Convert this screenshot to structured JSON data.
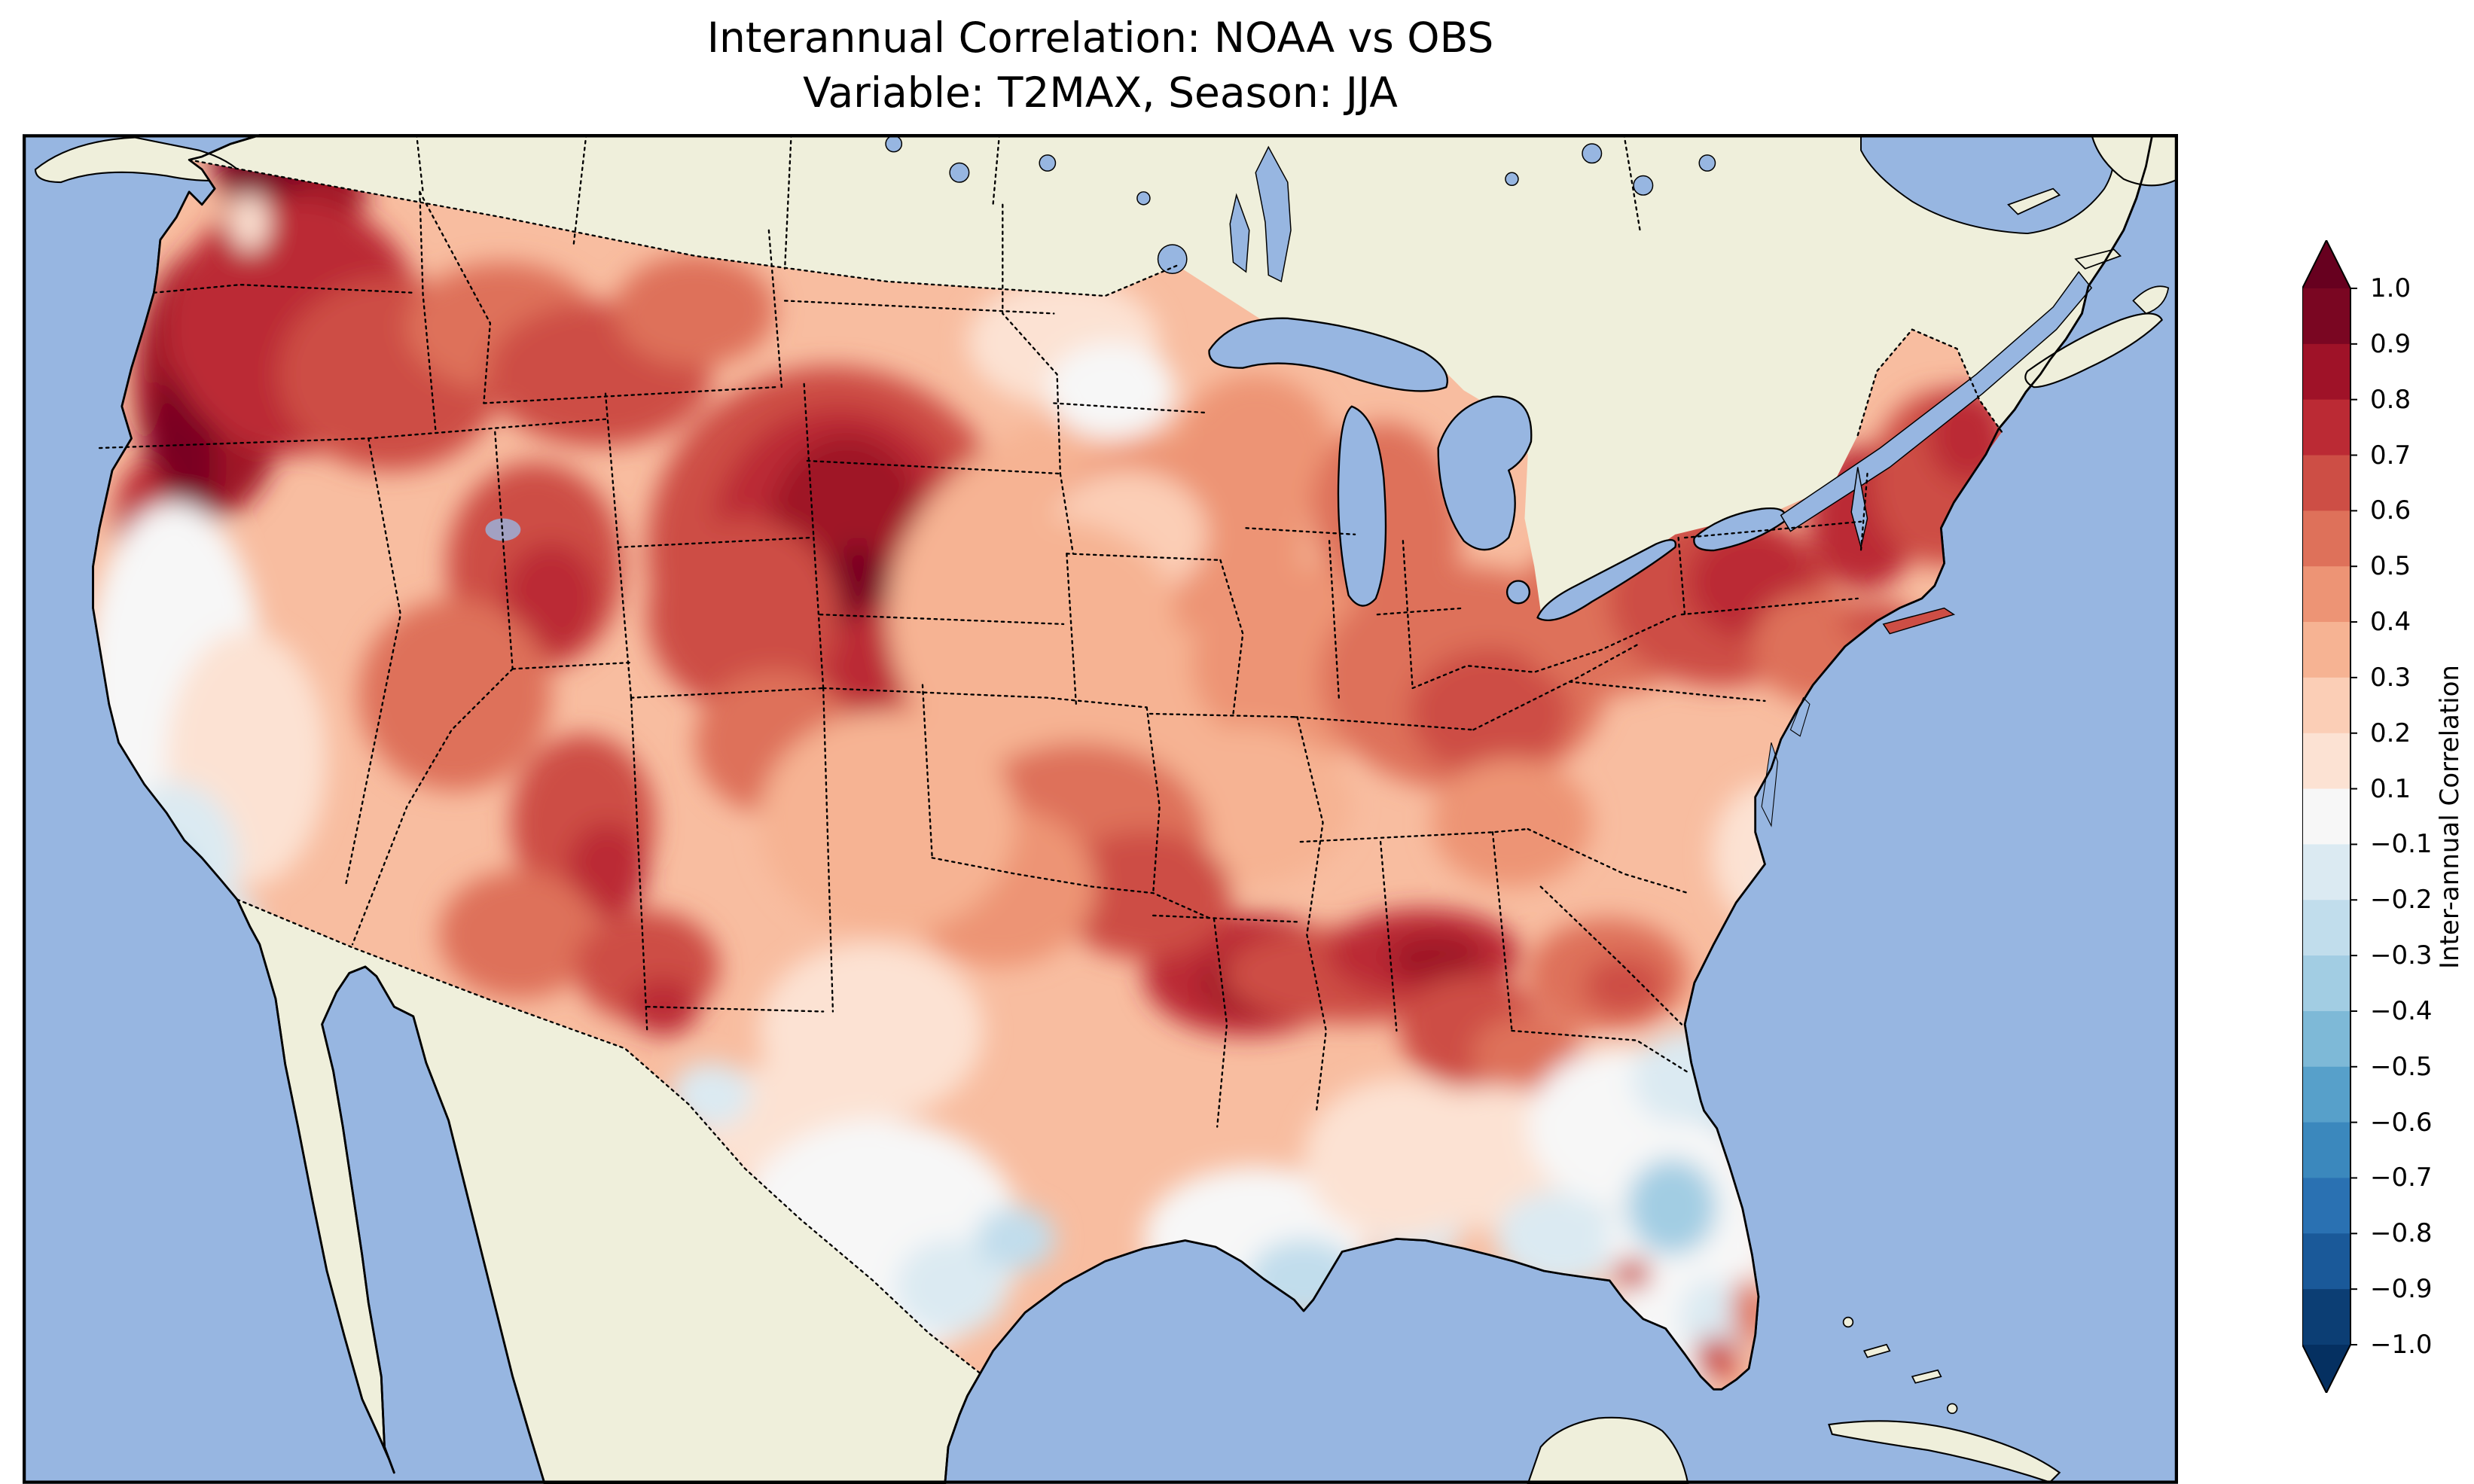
{
  "title": {
    "line1": "Interannual Correlation: NOAA vs OBS",
    "line2": "Variable: T2MAX, Season: JJA"
  },
  "colorbar": {
    "label": "Inter-annual Correlation",
    "ticks": [
      "1.0",
      "0.9",
      "0.8",
      "0.7",
      "0.6",
      "0.5",
      "0.4",
      "0.3",
      "0.2",
      "0.1",
      "−0.1",
      "−0.2",
      "−0.3",
      "−0.4",
      "−0.5",
      "−0.6",
      "−0.7",
      "−0.8",
      "−0.9",
      "−1.0"
    ],
    "band_colors": [
      "#7a0622",
      "#9f1228",
      "#bb2a34",
      "#cd4e45",
      "#de715a",
      "#ed9475",
      "#f6b393",
      "#fbceb6",
      "#fce2d3",
      "#f7f7f7",
      "#dbeaf2",
      "#c1ddec",
      "#a2cde3",
      "#7eb9d7",
      "#57a0ca",
      "#3b88bd",
      "#2a71b2",
      "#1a5999",
      "#0c3e74"
    ],
    "extend_above_color": "#67001f",
    "extend_below_color": "#053061"
  },
  "map": {
    "ocean_color": "#97b6e1",
    "land_color": "#efefdb",
    "border_style": "dotted",
    "coastline_color": "#000000"
  },
  "chart_data": {
    "type": "heatmap",
    "title": "Interannual Correlation: NOAA vs OBS",
    "subtitle": "Variable: T2MAX, Season: JJA",
    "region": "Contiguous United States",
    "value_name": "Inter-annual Correlation",
    "range": [
      -1.0,
      1.0
    ],
    "levels": [
      -1.0,
      -0.9,
      -0.8,
      -0.7,
      -0.6,
      -0.5,
      -0.4,
      -0.3,
      -0.2,
      -0.1,
      0.1,
      0.2,
      0.3,
      0.4,
      0.5,
      0.6,
      0.7,
      0.8,
      0.9,
      1.0
    ],
    "colormap": "RdBu_r",
    "colorbar_extend": "both",
    "notable_features": [
      {
        "area": "Pacific Northwest coast (WA/OR)",
        "approx_value": 0.8
      },
      {
        "area": "Wyoming / western Nebraska high plains",
        "approx_value": 0.8
      },
      {
        "area": "Great Basin (NV/UT)",
        "approx_value": 0.6
      },
      {
        "area": "Four Corners / New Mexico",
        "approx_value": 0.55
      },
      {
        "area": "Ozarks - Tennessee Valley band",
        "approx_value": 0.75
      },
      {
        "area": "Upstate New York / New England / Maine",
        "approx_value": 0.7
      },
      {
        "area": "Midwest / Corn Belt",
        "approx_value": 0.4
      },
      {
        "area": "Central California coast and valley",
        "approx_value": 0.0
      },
      {
        "area": "Southern California coast",
        "approx_value": -0.3
      },
      {
        "area": "South Texas",
        "approx_value": -0.1
      },
      {
        "area": "Louisiana Gulf coast",
        "approx_value": -0.2
      },
      {
        "area": "Southeast coastal plain (GA/SC)",
        "approx_value": -0.15
      },
      {
        "area": "Florida peninsula interior",
        "approx_value": -0.3
      },
      {
        "area": "North Dakota / Minnesota patch",
        "approx_value": 0.1
      }
    ]
  }
}
